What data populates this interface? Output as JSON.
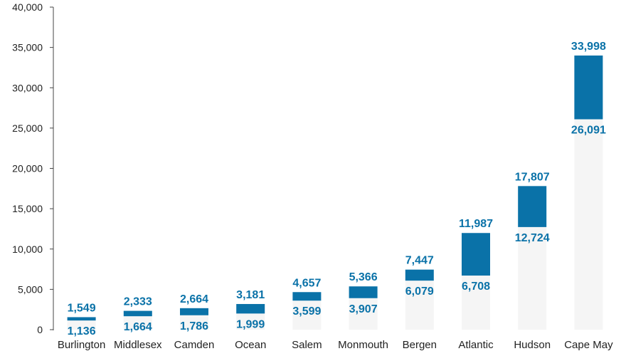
{
  "chart_data": {
    "type": "bar",
    "subtype": "floating-range",
    "title": "",
    "xlabel": "",
    "ylabel": "",
    "ylim": [
      0,
      40000
    ],
    "yticks": [
      0,
      5000,
      10000,
      15000,
      20000,
      25000,
      30000,
      35000,
      40000
    ],
    "ytick_labels": [
      "0",
      "5,000",
      "10,000",
      "15,000",
      "20,000",
      "25,000",
      "30,000",
      "35,000",
      "40,000"
    ],
    "grid": false,
    "legend": "none",
    "categories": [
      "Burlington",
      "Middlesex",
      "Camden",
      "Ocean",
      "Salem",
      "Monmouth",
      "Bergen",
      "Atlantic",
      "Hudson",
      "Cape May"
    ],
    "low": [
      1136,
      1664,
      1786,
      1999,
      3599,
      3907,
      6079,
      6708,
      12724,
      26091
    ],
    "high": [
      1549,
      2333,
      2664,
      3181,
      4657,
      5366,
      7447,
      11987,
      17807,
      33998
    ],
    "low_labels": [
      "1,136",
      "1,664",
      "1,786",
      "1,999",
      "3,599",
      "3,907",
      "6,079",
      "6,708",
      "12,724",
      "26,091"
    ],
    "high_labels": [
      "1,549",
      "2,333",
      "2,664",
      "3,181",
      "4,657",
      "5,366",
      "7,447",
      "11,987",
      "17,807",
      "33,998"
    ],
    "colors": {
      "bar": "#0A72A8",
      "base": "#F5F5F5",
      "label": "#0A72A8",
      "axis": "#444444",
      "text": "#222222"
    }
  }
}
